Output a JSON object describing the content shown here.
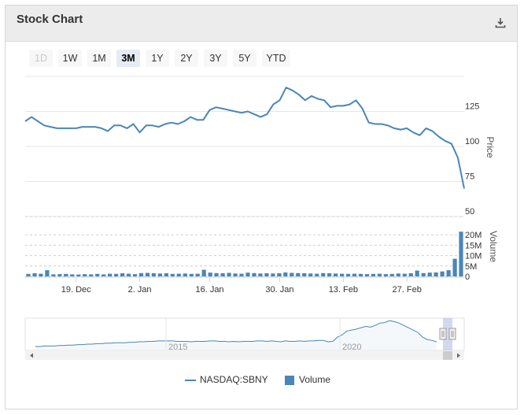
{
  "header": {
    "title": "Stock Chart",
    "download_icon": "download-icon"
  },
  "ranges": [
    {
      "label": "1D",
      "state": "disabled"
    },
    {
      "label": "1W",
      "state": "normal"
    },
    {
      "label": "1M",
      "state": "normal"
    },
    {
      "label": "3M",
      "state": "active"
    },
    {
      "label": "1Y",
      "state": "normal"
    },
    {
      "label": "2Y",
      "state": "normal"
    },
    {
      "label": "3Y",
      "state": "normal"
    },
    {
      "label": "5Y",
      "state": "normal"
    },
    {
      "label": "YTD",
      "state": "normal"
    }
  ],
  "chart_data": [
    {
      "type": "line",
      "name": "price-panel",
      "ylabel": "Price",
      "yticks": [
        50,
        75,
        100,
        125
      ],
      "ylim": [
        50,
        150
      ],
      "color": "#4a86b8",
      "xticks": [
        "19. Dec",
        "2. Jan",
        "16. Jan",
        "30. Jan",
        "13. Feb",
        "27. Feb"
      ],
      "series": [
        {
          "name": "NASDAQ:SBNY",
          "values": [
            118,
            121,
            118,
            115,
            114,
            113,
            113,
            113,
            113,
            114,
            114,
            114,
            113,
            111,
            115,
            115,
            113,
            116,
            110,
            115,
            115,
            114,
            116,
            117,
            116,
            118,
            121,
            119,
            119,
            126,
            128,
            127,
            126,
            125,
            124,
            125,
            123,
            121,
            123,
            130,
            133,
            142,
            140,
            137,
            133,
            136,
            134,
            133,
            128,
            129,
            129,
            130,
            133,
            127,
            117,
            116,
            116,
            115,
            113,
            112,
            113,
            110,
            108,
            113,
            111,
            107,
            104,
            102,
            92,
            70
          ]
        }
      ]
    },
    {
      "type": "bar",
      "name": "volume-panel",
      "ylabel": "Volume",
      "yticks": [
        "0",
        "5M",
        "10M",
        "15M",
        "20M"
      ],
      "ylim": [
        0,
        25
      ],
      "color": "#4a86b8",
      "series": [
        {
          "name": "Volume",
          "values": [
            1.2,
            1.5,
            1.3,
            3.0,
            1.0,
            1.1,
            1.2,
            1.0,
            0.9,
            1.1,
            1.0,
            1.2,
            1.0,
            1.3,
            1.2,
            1.5,
            1.3,
            1.1,
            1.6,
            1.7,
            1.5,
            1.4,
            1.5,
            1.2,
            1.3,
            1.4,
            1.2,
            1.3,
            3.2,
            1.8,
            1.6,
            1.5,
            1.7,
            1.4,
            1.3,
            1.8,
            1.6,
            1.4,
            1.5,
            1.4,
            1.5,
            1.9,
            1.7,
            1.6,
            1.5,
            1.4,
            1.3,
            1.6,
            1.5,
            1.4,
            1.3,
            1.2,
            1.3,
            1.2,
            1.1,
            1.2,
            1.3,
            1.1,
            1.2,
            1.4,
            1.3,
            1.5,
            2.8,
            1.6,
            1.8,
            1.9,
            2.4,
            3.0,
            8.5,
            21.5
          ]
        }
      ]
    },
    {
      "type": "area",
      "name": "navigator",
      "xticks": [
        "2015",
        "2020"
      ],
      "values": [
        5,
        5,
        6,
        6,
        6,
        7,
        7,
        8,
        8,
        9,
        9,
        10,
        10,
        11,
        11,
        12,
        12,
        13,
        13,
        13,
        14,
        14,
        15,
        15,
        16,
        16,
        17,
        17,
        17,
        17,
        16,
        16,
        16,
        15,
        16,
        16,
        16,
        17,
        17,
        16,
        16,
        15,
        16,
        15,
        16,
        16,
        16,
        17,
        17,
        16,
        17,
        16,
        15,
        17,
        16,
        16,
        17,
        16,
        17,
        17,
        18,
        18,
        15,
        16,
        25,
        30,
        38,
        40,
        42,
        45,
        48,
        46,
        50,
        55,
        56,
        60,
        58,
        55,
        50,
        45,
        40,
        35,
        25,
        20,
        18,
        15
      ]
    }
  ],
  "legend": [
    {
      "label": "NASDAQ:SBNY",
      "kind": "line"
    },
    {
      "label": "Volume",
      "kind": "bar"
    }
  ]
}
